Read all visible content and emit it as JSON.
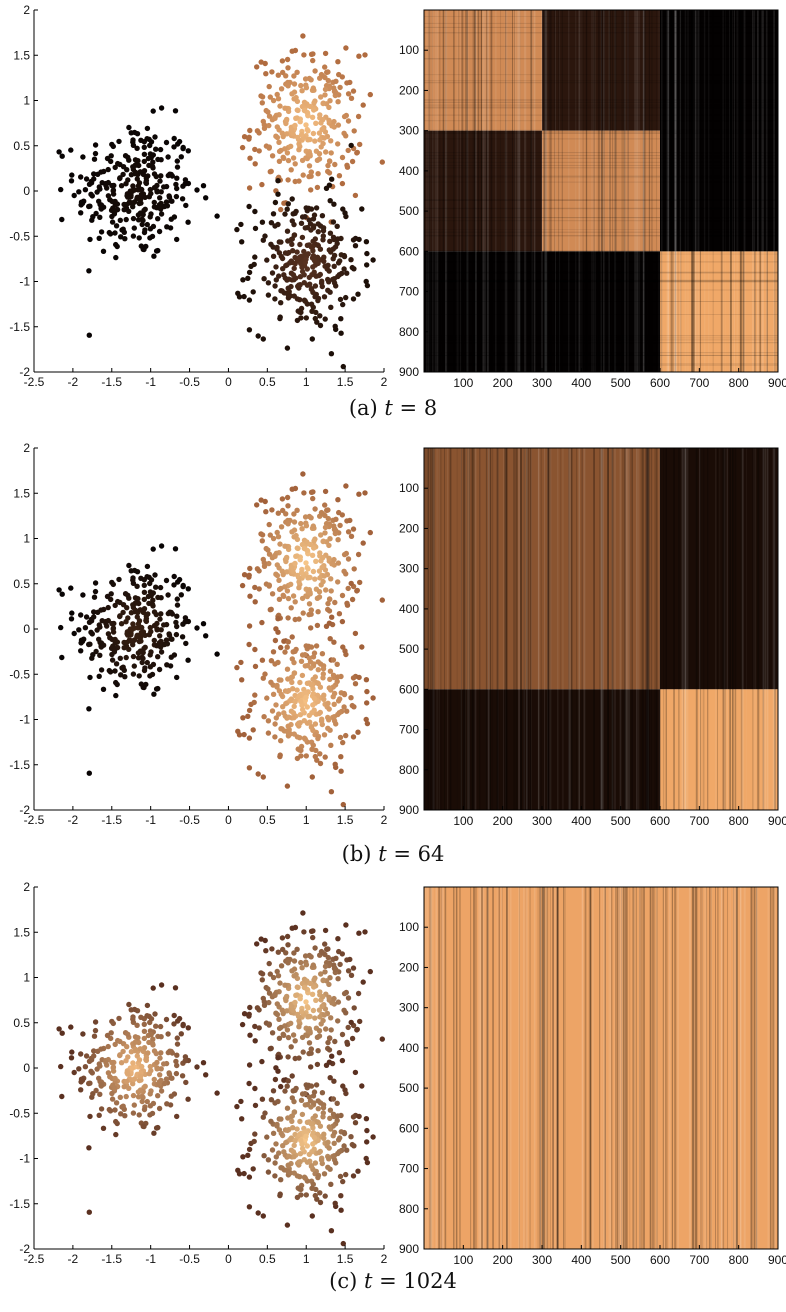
{
  "chart_data": [
    {
      "caption_prefix": "(a)",
      "caption_var": "t",
      "caption_value": "= 8",
      "scatter": {
        "type": "scatter",
        "xlim": [
          -2.5,
          2
        ],
        "ylim": [
          -2,
          2
        ],
        "xticks": [
          "-2.5",
          "-2",
          "-1.5",
          "-1",
          "-0.5",
          "0",
          "0.5",
          "1",
          "1.5",
          "2"
        ],
        "yticks": [
          "-2",
          "-1.5",
          "-1",
          "-0.5",
          "0",
          "0.5",
          "1",
          "1.5",
          "2"
        ],
        "clusters": [
          {
            "name": "left",
            "center": [
              -1.2,
              0.0
            ],
            "spread": [
              0.38,
              0.38
            ],
            "n": 300,
            "color_center": "#1a0e08",
            "color_edge": "#080404"
          },
          {
            "name": "upper-right",
            "center": [
              1.0,
              0.75
            ],
            "spread": [
              0.35,
              0.38
            ],
            "n": 300,
            "color_center": "#f6c184",
            "color_edge": "#b06b3f"
          },
          {
            "name": "lower-right",
            "center": [
              1.0,
              -0.8
            ],
            "spread": [
              0.35,
              0.38
            ],
            "n": 300,
            "color_center": "#5a3321",
            "color_edge": "#1c0f08"
          }
        ]
      },
      "heatmap": {
        "type": "heatmap",
        "range": [
          0,
          900
        ],
        "xticks": [
          "100",
          "200",
          "300",
          "400",
          "500",
          "600",
          "700",
          "800",
          "900"
        ],
        "yticks": [
          "100",
          "200",
          "300",
          "400",
          "500",
          "600",
          "700",
          "800",
          "900"
        ],
        "blocks": [
          {
            "rows": [
              0,
              300
            ],
            "cols": [
              0,
              300
            ],
            "color": "#d08a55"
          },
          {
            "rows": [
              0,
              300
            ],
            "cols": [
              300,
              600
            ],
            "color": "#2b160d"
          },
          {
            "rows": [
              300,
              600
            ],
            "cols": [
              0,
              300
            ],
            "color": "#2b160d"
          },
          {
            "rows": [
              300,
              600
            ],
            "cols": [
              300,
              600
            ],
            "color": "#d08a55"
          },
          {
            "rows": [
              600,
              900
            ],
            "cols": [
              600,
              900
            ],
            "color": "#f0a868"
          },
          {
            "rows": [
              0,
              600
            ],
            "cols": [
              600,
              900
            ],
            "color": "#030101"
          },
          {
            "rows": [
              600,
              900
            ],
            "cols": [
              0,
              600
            ],
            "color": "#030101"
          }
        ]
      }
    },
    {
      "caption_prefix": "(b)",
      "caption_var": "t",
      "caption_value": "= 64",
      "scatter": {
        "type": "scatter",
        "xlim": [
          -2.5,
          2
        ],
        "ylim": [
          -2,
          2
        ],
        "xticks": [
          "-2.5",
          "-2",
          "-1.5",
          "-1",
          "-0.5",
          "0",
          "0.5",
          "1",
          "1.5",
          "2"
        ],
        "yticks": [
          "-2",
          "-1.5",
          "-1",
          "-0.5",
          "0",
          "0.5",
          "1",
          "1.5",
          "2"
        ],
        "clusters": [
          {
            "name": "left",
            "center": [
              -1.2,
              0.0
            ],
            "spread": [
              0.38,
              0.38
            ],
            "n": 300,
            "color_center": "#3a2112",
            "color_edge": "#080404"
          },
          {
            "name": "upper-right",
            "center": [
              1.0,
              0.75
            ],
            "spread": [
              0.35,
              0.38
            ],
            "n": 300,
            "color_center": "#f8c88a",
            "color_edge": "#a2613a"
          },
          {
            "name": "lower-right",
            "center": [
              1.0,
              -0.8
            ],
            "spread": [
              0.35,
              0.38
            ],
            "n": 300,
            "color_center": "#f6c184",
            "color_edge": "#a2613a"
          }
        ]
      },
      "heatmap": {
        "type": "heatmap",
        "range": [
          0,
          900
        ],
        "xticks": [
          "100",
          "200",
          "300",
          "400",
          "500",
          "600",
          "700",
          "800",
          "900"
        ],
        "yticks": [
          "100",
          "200",
          "300",
          "400",
          "500",
          "600",
          "700",
          "800",
          "900"
        ],
        "blocks": [
          {
            "rows": [
              0,
              600
            ],
            "cols": [
              0,
              600
            ],
            "color": "#8a5430"
          },
          {
            "rows": [
              0,
              600
            ],
            "cols": [
              600,
              900
            ],
            "color": "#1a0c06"
          },
          {
            "rows": [
              600,
              900
            ],
            "cols": [
              0,
              600
            ],
            "color": "#1a0c06"
          },
          {
            "rows": [
              600,
              900
            ],
            "cols": [
              600,
              900
            ],
            "color": "#f0a868"
          }
        ]
      }
    },
    {
      "caption_prefix": "(c)",
      "caption_var": "t",
      "caption_value": "= 1024",
      "scatter": {
        "type": "scatter",
        "xlim": [
          -2.5,
          2
        ],
        "ylim": [
          -2,
          2
        ],
        "xticks": [
          "-2.5",
          "-2",
          "-1.5",
          "-1",
          "-0.5",
          "0",
          "0.5",
          "1",
          "1.5",
          "2"
        ],
        "yticks": [
          "-2",
          "-1.5",
          "-1",
          "-0.5",
          "0",
          "0.5",
          "1",
          "1.5",
          "2"
        ],
        "clusters": [
          {
            "name": "left",
            "center": [
              -1.2,
              0.0
            ],
            "spread": [
              0.38,
              0.38
            ],
            "n": 300,
            "color_center": "#f3bb80",
            "color_edge": "#5a3020"
          },
          {
            "name": "upper-right",
            "center": [
              1.0,
              0.75
            ],
            "spread": [
              0.35,
              0.38
            ],
            "n": 300,
            "color_center": "#f8c88a",
            "color_edge": "#5a3020"
          },
          {
            "name": "lower-right",
            "center": [
              1.0,
              -0.8
            ],
            "spread": [
              0.35,
              0.38
            ],
            "n": 300,
            "color_center": "#f8c88a",
            "color_edge": "#5a3020"
          }
        ]
      },
      "heatmap": {
        "type": "heatmap",
        "range": [
          0,
          900
        ],
        "xticks": [
          "100",
          "200",
          "300",
          "400",
          "500",
          "600",
          "700",
          "800",
          "900"
        ],
        "yticks": [
          "100",
          "200",
          "300",
          "400",
          "500",
          "600",
          "700",
          "800",
          "900"
        ],
        "blocks": [
          {
            "rows": [
              0,
              900
            ],
            "cols": [
              0,
              900
            ],
            "color": "#eda466"
          }
        ]
      }
    }
  ]
}
